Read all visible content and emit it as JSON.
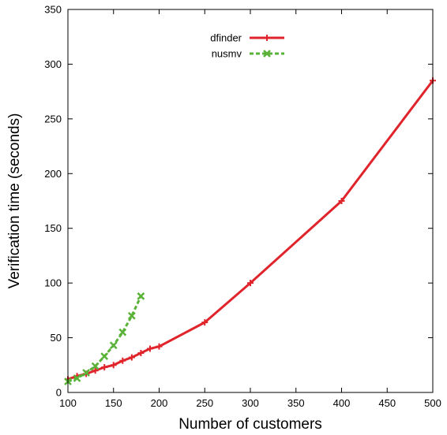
{
  "chart_data": {
    "type": "line",
    "title": "",
    "xlabel": "Number of customers",
    "ylabel": "Verification time (seconds)",
    "xlim": [
      100,
      500
    ],
    "ylim": [
      0,
      350
    ],
    "xticks": [
      100,
      150,
      200,
      250,
      300,
      350,
      400,
      450,
      500
    ],
    "yticks": [
      0,
      50,
      100,
      150,
      200,
      250,
      300,
      350
    ],
    "grid": false,
    "legend_position": "top-center",
    "series": [
      {
        "name": "dfinder",
        "color": "#e0242b",
        "line_style": "solid",
        "marker": "plus",
        "x": [
          100,
          110,
          120,
          130,
          140,
          150,
          160,
          170,
          180,
          190,
          200,
          250,
          300,
          400,
          500
        ],
        "y": [
          12,
          15,
          17,
          20,
          23,
          25,
          29,
          32,
          36,
          40,
          42,
          64,
          100,
          175,
          285
        ]
      },
      {
        "name": "nusmv",
        "color": "#5ab238",
        "line_style": "dashed",
        "marker": "x",
        "x": [
          100,
          110,
          120,
          130,
          140,
          150,
          160,
          170,
          180
        ],
        "y": [
          10,
          13,
          18,
          24,
          33,
          43,
          55,
          70,
          88
        ]
      }
    ]
  }
}
